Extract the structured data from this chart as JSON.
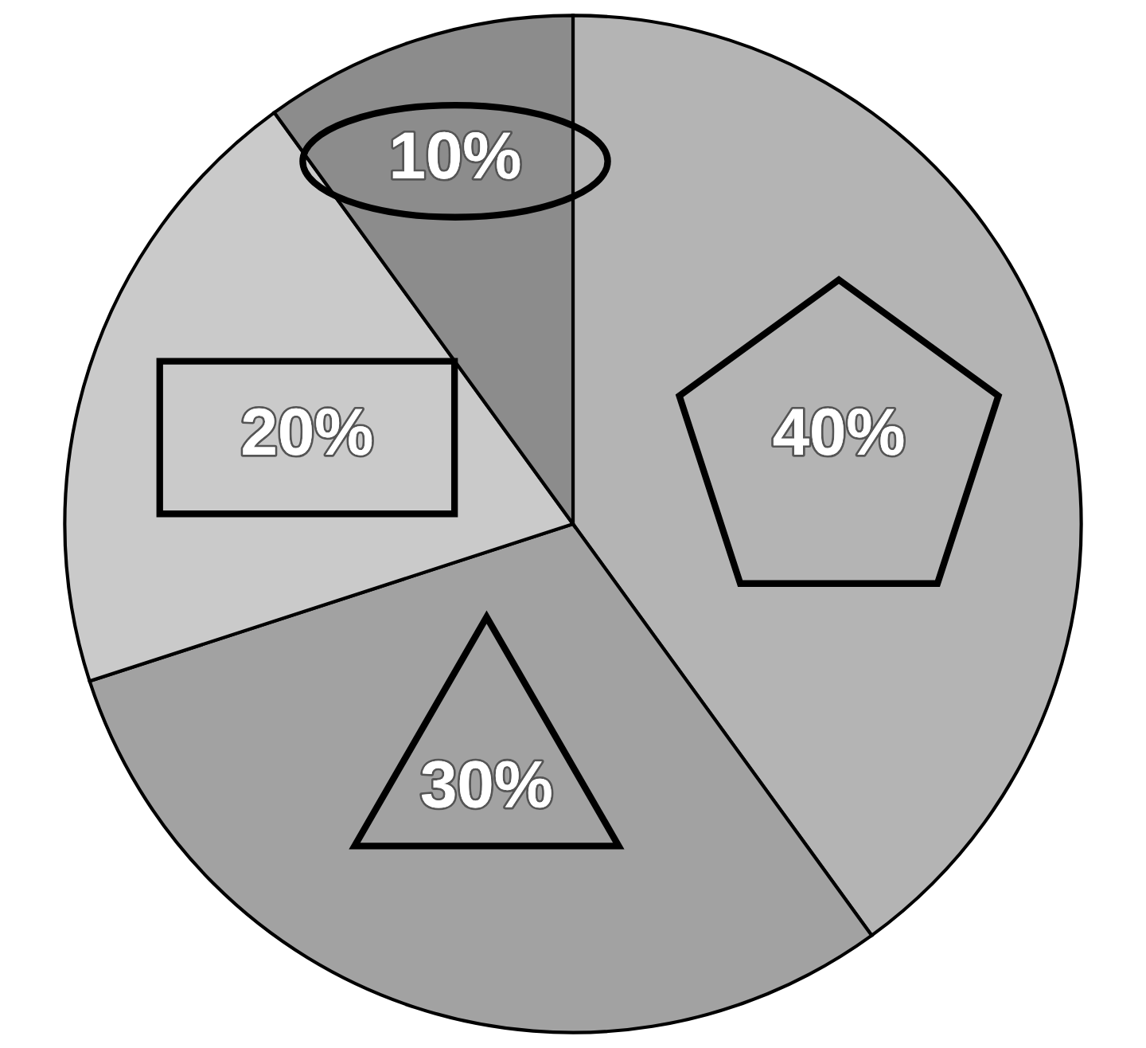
{
  "chart_data": {
    "type": "pie",
    "categories": [
      null,
      null,
      null,
      null
    ],
    "values": [
      40,
      30,
      20,
      10
    ],
    "value_labels": [
      "40%",
      "30%",
      "20%",
      "10%"
    ],
    "colors": [
      "#b4b4b4",
      "#a2a2a2",
      "#cacaca",
      "#8c8c8c"
    ]
  }
}
